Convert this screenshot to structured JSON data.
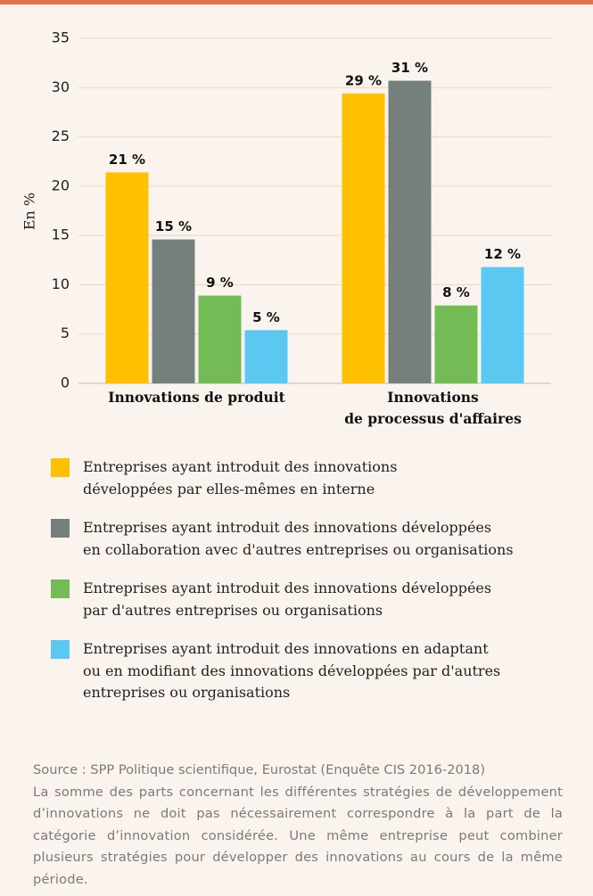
{
  "chart_data": {
    "type": "bar",
    "y_label": "En %",
    "categories": [
      "Innovations de produit",
      "Innovations\nde processus d'affaires"
    ],
    "series": [
      {
        "name": "Entreprises ayant introduit des innovations\ndéveloppées par elles-mêmes en interne",
        "color": "#ffc000",
        "values": [
          21.4,
          29.4
        ],
        "value_labels": [
          "21 %",
          "29 %"
        ]
      },
      {
        "name": "Entreprises ayant introduit des innovations développées\nen collaboration avec d'autres entreprises ou organisations",
        "color": "#75807d",
        "values": [
          14.6,
          30.7
        ],
        "value_labels": [
          "15 %",
          "31 %"
        ]
      },
      {
        "name": "Entreprises ayant introduit des innovations développées\npar d'autres entreprises ou organisations",
        "color": "#72bb55",
        "values": [
          8.9,
          7.9
        ],
        "value_labels": [
          "9 %",
          "8 %"
        ]
      },
      {
        "name": "Entreprises ayant introduit des innovations en adaptant\nou en modifiant des innovations développées par d'autres\nentreprises ou organisations",
        "color": "#5bc8f2",
        "values": [
          5.4,
          11.8
        ],
        "value_labels": [
          "5 %",
          "12 %"
        ]
      }
    ],
    "ylim": [
      0,
      35
    ],
    "yticks": [
      0,
      5,
      10,
      15,
      20,
      25,
      30,
      35
    ],
    "grid": true,
    "source": "Source : SPP Politique scientifique, Eurostat (Enquête CIS 2016-2018)",
    "note": "La somme des parts concernant les différentes stratégies de développement d’innovations ne doit pas nécessairement correspondre à la part de la catégorie d’innovation considérée. Une même entreprise peut combiner plusieurs stratégies pour développer des innovations au cours de la même période."
  }
}
